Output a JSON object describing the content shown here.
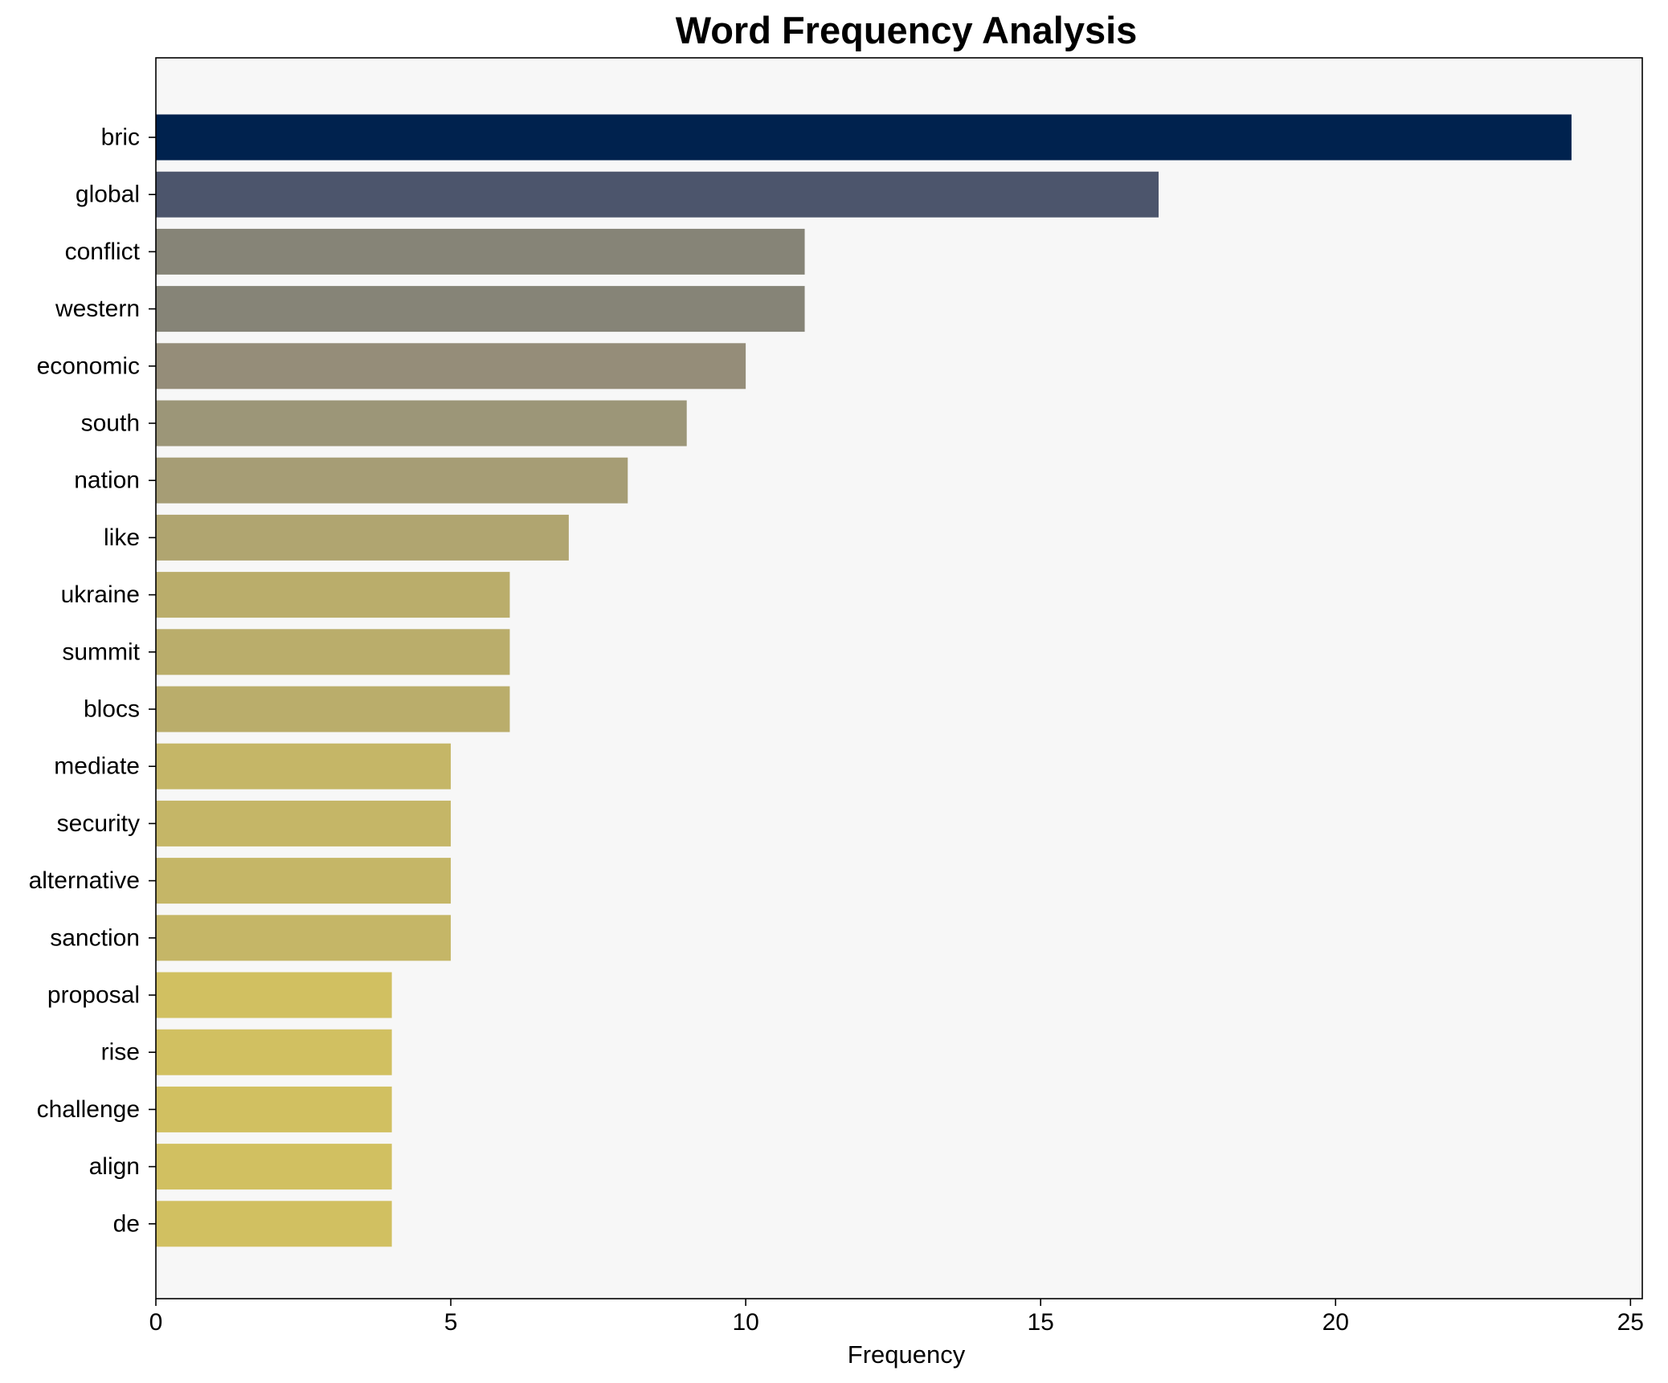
{
  "chart_data": {
    "type": "bar",
    "orientation": "horizontal",
    "title": "Word Frequency Analysis",
    "xlabel": "Frequency",
    "ylabel": "",
    "xlim": [
      0,
      25.2
    ],
    "xticks": [
      0,
      5,
      10,
      15,
      20,
      25
    ],
    "grid": false,
    "legend": "none",
    "plot_background": "#f7f7f7",
    "categories": [
      "bric",
      "global",
      "conflict",
      "western",
      "economic",
      "south",
      "nation",
      "like",
      "ukraine",
      "summit",
      "blocs",
      "mediate",
      "security",
      "alternative",
      "sanction",
      "proposal",
      "rise",
      "challenge",
      "align",
      "de"
    ],
    "values": [
      24,
      17,
      11,
      11,
      10,
      9,
      8,
      7,
      6,
      6,
      6,
      5,
      5,
      5,
      5,
      4,
      4,
      4,
      4,
      4
    ],
    "colors": [
      "#00224e",
      "#4c556c",
      "#868477",
      "#868477",
      "#958d79",
      "#9c9678",
      "#a69d75",
      "#b0a570",
      "#baad6b",
      "#baad6b",
      "#baad6b",
      "#c5b667",
      "#c5b667",
      "#c5b667",
      "#c5b667",
      "#d1c061",
      "#d1c061",
      "#d1c061",
      "#d1c061",
      "#d1c061"
    ]
  }
}
